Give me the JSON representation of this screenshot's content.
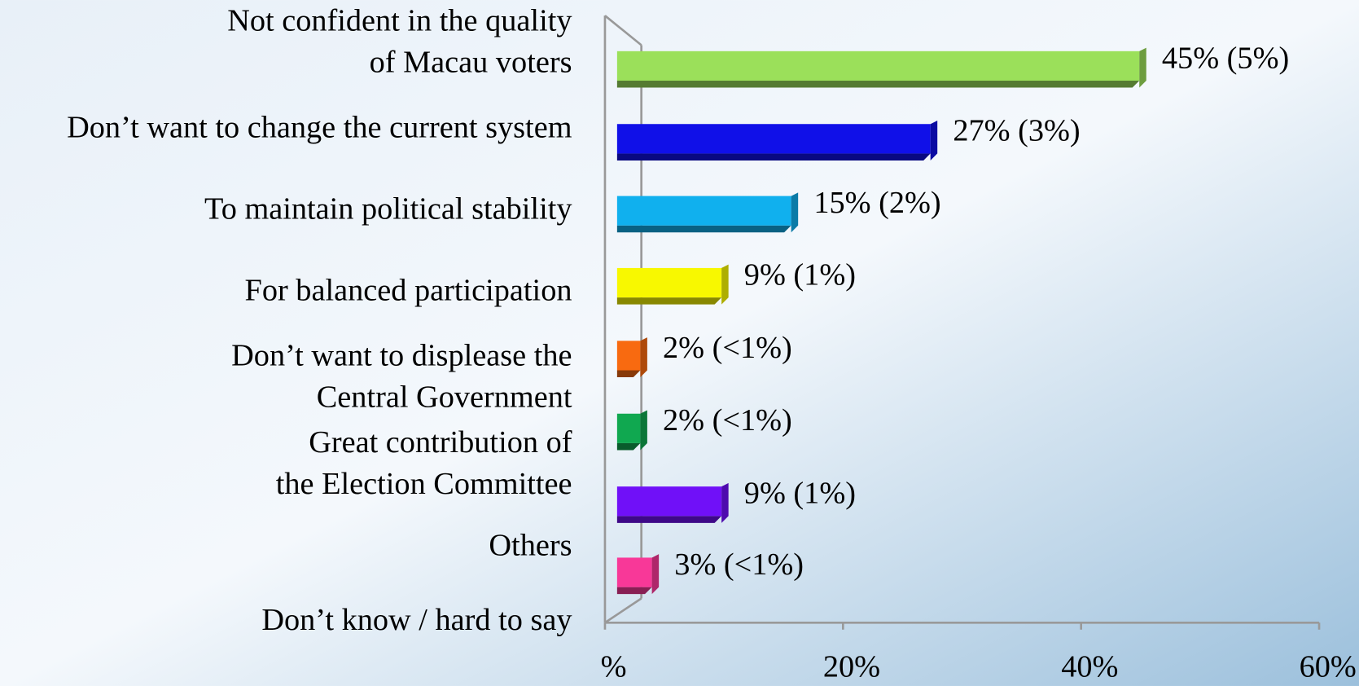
{
  "chart_data": {
    "type": "bar",
    "orientation": "horizontal",
    "categories": [
      [
        "Not confident in the quality",
        "of Macau voters"
      ],
      [
        "Don’t want to change the current system"
      ],
      [
        "To maintain political stability"
      ],
      [
        "For balanced participation"
      ],
      [
        "Don’t want to displease the",
        "Central Government"
      ],
      [
        "Great contribution of",
        "the Election Committee"
      ],
      [
        "Others"
      ],
      [
        "Don’t know / hard to say"
      ]
    ],
    "values": [
      45,
      27,
      15,
      9,
      2,
      2,
      9,
      3
    ],
    "value_labels": [
      "45% (5%)",
      "27% (3%)",
      "15% (2%)",
      "9% (1%)",
      "2% (<1%)",
      "2% (<1%)",
      "9% (1%)",
      "3% (<1%)"
    ],
    "colors": [
      "#9be05a",
      "#1010e8",
      "#10b0ee",
      "#f8f800",
      "#f86a10",
      "#10a850",
      "#7010f8",
      "#f83898"
    ],
    "xlim": [
      0,
      60
    ],
    "xticks": [
      {
        "value": 0,
        "label": "%"
      },
      {
        "value": 20,
        "label": "20%"
      },
      {
        "value": 40,
        "label": "40%"
      },
      {
        "value": 60,
        "label": "60%"
      }
    ]
  }
}
